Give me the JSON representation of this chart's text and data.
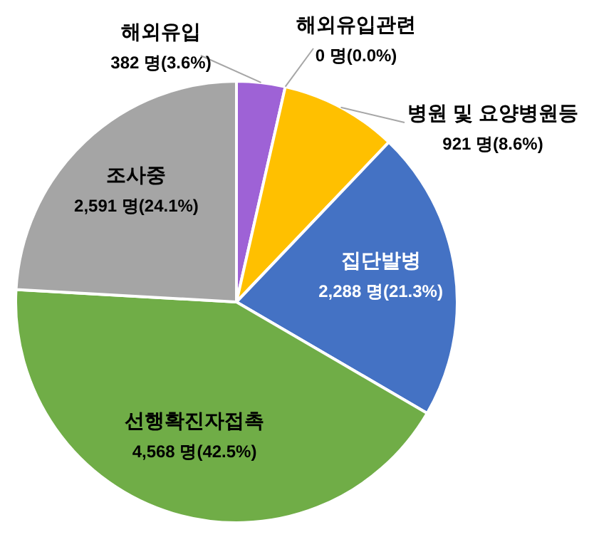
{
  "chart_data": {
    "type": "pie",
    "categories": [
      "해외유입",
      "해외유입관련",
      "병원 및 요양병원등",
      "집단발병",
      "선행확진자접촉",
      "조사중"
    ],
    "values": [
      382,
      0,
      921,
      2288,
      4568,
      2591
    ],
    "value_labels": [
      "382 명(3.6%)",
      "0 명(0.0%)",
      "921 명(8.6%)",
      "2,288 명(21.3%)",
      "4,568 명(42.5%)",
      "2,591 명(24.1%)"
    ],
    "colors": [
      "#9e62d6",
      null,
      "#ffc000",
      "#4472c4",
      "#70ad47",
      "#a5a5a5"
    ]
  }
}
